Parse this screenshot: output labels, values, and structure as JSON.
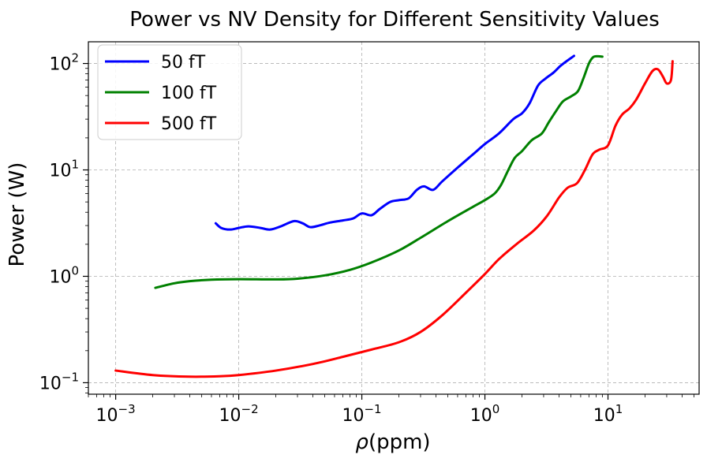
{
  "chart_data": {
    "type": "line",
    "title": "Power vs NV Density for Different Sensitivity Values",
    "xlabel_italic": "ρ",
    "xlabel_rest": "(ppm)",
    "ylabel": "Power (W)",
    "xscale": "log",
    "yscale": "log",
    "xlim": [
      0.0006,
      55
    ],
    "ylim": [
      0.078,
      160
    ],
    "x_ticks": [
      {
        "value": 0.001,
        "base": "10",
        "exp": "−3"
      },
      {
        "value": 0.01,
        "base": "10",
        "exp": "−2"
      },
      {
        "value": 0.1,
        "base": "10",
        "exp": "−1"
      },
      {
        "value": 1,
        "base": "10",
        "exp": "0"
      },
      {
        "value": 10,
        "base": "10",
        "exp": "1"
      }
    ],
    "y_ticks": [
      {
        "value": 0.1,
        "base": "10",
        "exp": "−1"
      },
      {
        "value": 1,
        "base": "10",
        "exp": "0"
      },
      {
        "value": 10,
        "base": "10",
        "exp": "1"
      },
      {
        "value": 100,
        "base": "10",
        "exp": "2"
      }
    ],
    "grid": true,
    "legend_position": "top-left",
    "series": [
      {
        "name": "50 fT",
        "color": "#0000ff",
        "points": [
          [
            0.0065,
            3.15
          ],
          [
            0.0072,
            2.85
          ],
          [
            0.0085,
            2.75
          ],
          [
            0.01,
            2.85
          ],
          [
            0.012,
            2.95
          ],
          [
            0.015,
            2.85
          ],
          [
            0.018,
            2.75
          ],
          [
            0.022,
            2.95
          ],
          [
            0.028,
            3.3
          ],
          [
            0.033,
            3.15
          ],
          [
            0.038,
            2.9
          ],
          [
            0.045,
            3.0
          ],
          [
            0.055,
            3.2
          ],
          [
            0.07,
            3.35
          ],
          [
            0.085,
            3.5
          ],
          [
            0.1,
            3.9
          ],
          [
            0.12,
            3.75
          ],
          [
            0.14,
            4.3
          ],
          [
            0.17,
            5.0
          ],
          [
            0.2,
            5.2
          ],
          [
            0.24,
            5.4
          ],
          [
            0.28,
            6.5
          ],
          [
            0.32,
            7.0
          ],
          [
            0.38,
            6.5
          ],
          [
            0.45,
            7.8
          ],
          [
            0.6,
            10.5
          ],
          [
            0.8,
            14.0
          ],
          [
            1.0,
            17.5
          ],
          [
            1.3,
            22.0
          ],
          [
            1.7,
            30.0
          ],
          [
            2.0,
            34.0
          ],
          [
            2.3,
            42.0
          ],
          [
            2.7,
            62.0
          ],
          [
            3.1,
            72.0
          ],
          [
            3.6,
            82.0
          ],
          [
            4.2,
            97.0
          ],
          [
            5.3,
            118.0
          ]
        ]
      },
      {
        "name": "100 fT",
        "color": "#008000",
        "points": [
          [
            0.0021,
            0.78
          ],
          [
            0.003,
            0.86
          ],
          [
            0.004,
            0.9
          ],
          [
            0.006,
            0.93
          ],
          [
            0.01,
            0.94
          ],
          [
            0.02,
            0.935
          ],
          [
            0.03,
            0.95
          ],
          [
            0.05,
            1.02
          ],
          [
            0.08,
            1.15
          ],
          [
            0.12,
            1.35
          ],
          [
            0.2,
            1.75
          ],
          [
            0.3,
            2.3
          ],
          [
            0.5,
            3.3
          ],
          [
            0.8,
            4.5
          ],
          [
            1.0,
            5.2
          ],
          [
            1.2,
            6.0
          ],
          [
            1.35,
            7.2
          ],
          [
            1.55,
            10.0
          ],
          [
            1.75,
            13.0
          ],
          [
            2.0,
            15.0
          ],
          [
            2.4,
            19.0
          ],
          [
            2.9,
            22.0
          ],
          [
            3.3,
            28.0
          ],
          [
            3.8,
            36.0
          ],
          [
            4.3,
            44.0
          ],
          [
            5.0,
            49.0
          ],
          [
            5.7,
            55.0
          ],
          [
            6.3,
            72.0
          ],
          [
            7.0,
            100.0
          ],
          [
            7.6,
            115.0
          ],
          [
            8.3,
            117.0
          ],
          [
            9.0,
            116.0
          ]
        ]
      },
      {
        "name": "500 fT",
        "color": "#ff0000",
        "points": [
          [
            0.001,
            0.13
          ],
          [
            0.002,
            0.118
          ],
          [
            0.004,
            0.114
          ],
          [
            0.007,
            0.115
          ],
          [
            0.01,
            0.118
          ],
          [
            0.02,
            0.13
          ],
          [
            0.04,
            0.15
          ],
          [
            0.07,
            0.175
          ],
          [
            0.12,
            0.205
          ],
          [
            0.2,
            0.24
          ],
          [
            0.3,
            0.3
          ],
          [
            0.45,
            0.43
          ],
          [
            0.7,
            0.7
          ],
          [
            1.0,
            1.05
          ],
          [
            1.3,
            1.45
          ],
          [
            1.8,
            2.0
          ],
          [
            2.5,
            2.7
          ],
          [
            3.2,
            3.7
          ],
          [
            4.0,
            5.5
          ],
          [
            4.7,
            6.8
          ],
          [
            5.6,
            7.5
          ],
          [
            6.5,
            10.0
          ],
          [
            7.5,
            14.0
          ],
          [
            8.5,
            15.5
          ],
          [
            10.0,
            17.0
          ],
          [
            11.5,
            26.0
          ],
          [
            13.0,
            33.0
          ],
          [
            15.0,
            38.0
          ],
          [
            17.0,
            46.0
          ],
          [
            20.0,
            65.0
          ],
          [
            23.0,
            85.0
          ],
          [
            25.5,
            88.0
          ],
          [
            28.0,
            75.0
          ],
          [
            30.0,
            65.0
          ],
          [
            32.5,
            70.0
          ],
          [
            33.5,
            105.0
          ]
        ]
      }
    ]
  }
}
